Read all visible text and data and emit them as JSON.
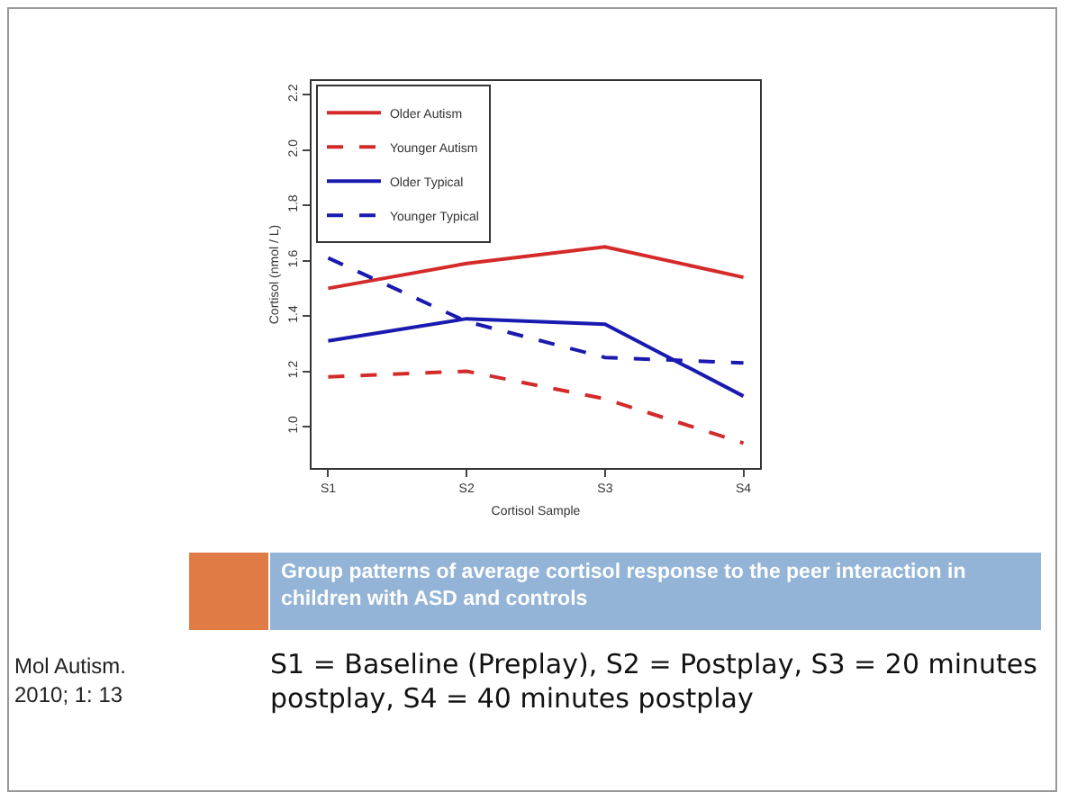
{
  "chart_data": {
    "type": "line",
    "title": "Group patterns of average cortisol response to the peer interaction in children with ASD and controls",
    "xlabel": "Cortisol Sample",
    "ylabel": "Cortisol (nmol / L)",
    "categories": [
      "S1",
      "S2",
      "S3",
      "S4"
    ],
    "series": [
      {
        "name": "Older Autism",
        "color": "#d42a2a",
        "line_style": "solid",
        "values": [
          1.5,
          1.59,
          1.65,
          1.54
        ]
      },
      {
        "name": "Younger Autism",
        "color": "#d42a2a",
        "line_style": "dashed",
        "values": [
          1.18,
          1.2,
          1.1,
          0.94
        ]
      },
      {
        "name": "Older Typical",
        "color": "#1a1ab0",
        "line_style": "solid",
        "values": [
          1.31,
          1.39,
          1.37,
          1.11
        ]
      },
      {
        "name": "Younger Typical",
        "color": "#1a1ab0",
        "line_style": "dashed",
        "values": [
          1.61,
          1.38,
          1.25,
          1.23
        ]
      }
    ],
    "ylim": [
      0.85,
      2.25
    ],
    "yticks": [
      {
        "value": 1.0,
        "label": "1.0"
      },
      1.2,
      1.4,
      1.6,
      1.8,
      {
        "value": 2.0,
        "label": "2.0"
      },
      2.2
    ],
    "grid": false,
    "legend": "top left",
    "marker": "none",
    "annotations": [
      "Mol Autism. 2010; 1: 13",
      "S1 = Baseline (Preplay), S2 = Postplay, S3 = 20 minutes postplay, S4 = 40 minutes postplay"
    ]
  }
}
